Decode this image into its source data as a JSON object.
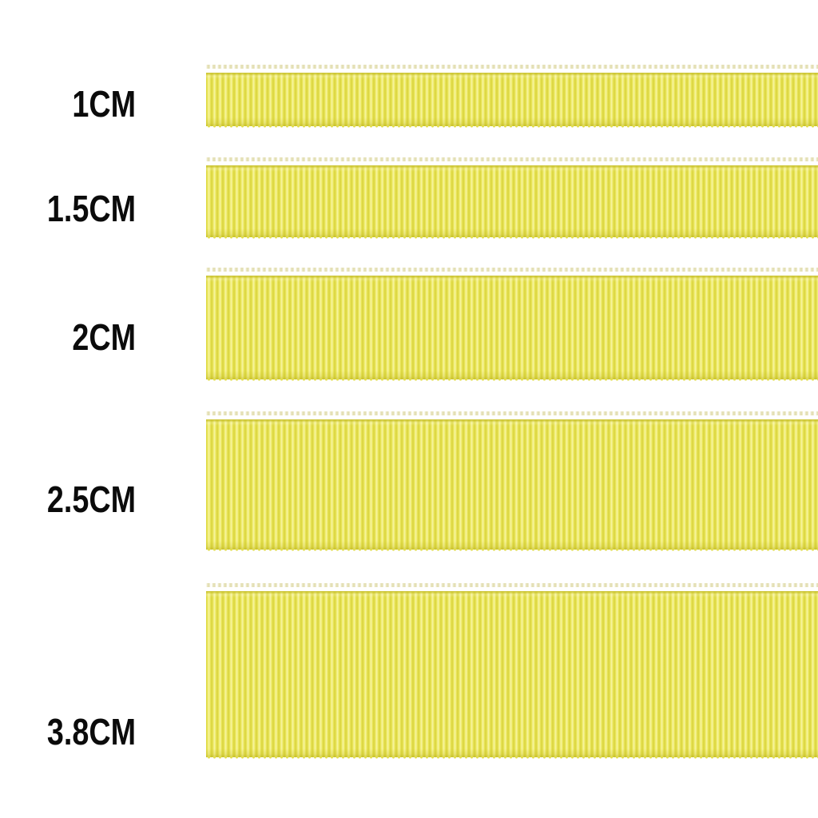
{
  "chart": {
    "kind": "ribbon-width-size-comparison",
    "background": "#ffffff",
    "label_color": "#0b0b0b",
    "ribbon_colors": {
      "rib_highlight": "#f8f5a4",
      "rib_mid": "#ebe75e",
      "rib_shadow": "#d8d33b",
      "edge_dark": "#c9c233"
    }
  },
  "ribbons": [
    {
      "label": "1CM"
    },
    {
      "label": "1.5CM"
    },
    {
      "label": "2CM"
    },
    {
      "label": "2.5CM"
    },
    {
      "label": "3.8CM"
    }
  ]
}
